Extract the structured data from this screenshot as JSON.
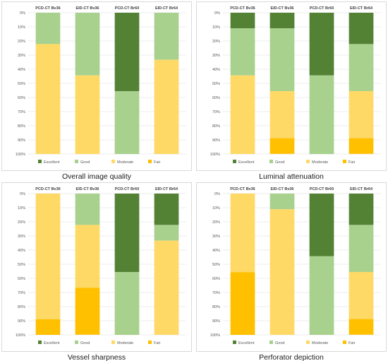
{
  "colors": {
    "Excellent": "#548235",
    "Good": "#a9d18e",
    "Moderate": "#ffd966",
    "Fair": "#ffc000"
  },
  "chart_data": [
    {
      "type": "bar",
      "stacked": "percent",
      "orientation": "vertical",
      "y_axis_inverted": true,
      "title": "Overall image quality",
      "categories": [
        "PCD-CT Bv36",
        "EID-CT Bv36",
        "PCD-CT Br60",
        "EID-CT Br64"
      ],
      "ylim": [
        0,
        100
      ],
      "yticks": [
        "0%",
        "10%",
        "20%",
        "30%",
        "40%",
        "50%",
        "60%",
        "70%",
        "80%",
        "90%",
        "100%"
      ],
      "legend_position": "bottom",
      "series": [
        {
          "name": "Excellent",
          "values": [
            0,
            0,
            55.6,
            0
          ]
        },
        {
          "name": "Good",
          "values": [
            22.2,
            44.4,
            44.4,
            33.3
          ]
        },
        {
          "name": "Moderate",
          "values": [
            77.8,
            55.6,
            0,
            66.7
          ]
        },
        {
          "name": "Fair",
          "values": [
            0,
            0,
            0,
            0
          ]
        }
      ]
    },
    {
      "type": "bar",
      "stacked": "percent",
      "orientation": "vertical",
      "y_axis_inverted": true,
      "title": "Luminal attenuation",
      "categories": [
        "PCD-CT Bv36",
        "EID-CT Bv36",
        "PCD-CT Br60",
        "EID-CT Br64"
      ],
      "ylim": [
        0,
        100
      ],
      "yticks": [
        "0%",
        "10%",
        "20%",
        "30%",
        "40%",
        "50%",
        "60%",
        "70%",
        "80%",
        "90%",
        "100%"
      ],
      "legend_position": "bottom",
      "series": [
        {
          "name": "Excellent",
          "values": [
            11.1,
            11.1,
            44.4,
            22.2
          ]
        },
        {
          "name": "Good",
          "values": [
            33.3,
            44.4,
            55.6,
            33.3
          ]
        },
        {
          "name": "Moderate",
          "values": [
            55.6,
            33.3,
            0,
            33.3
          ]
        },
        {
          "name": "Fair",
          "values": [
            0,
            11.1,
            0,
            11.1
          ]
        }
      ]
    },
    {
      "type": "bar",
      "stacked": "percent",
      "orientation": "vertical",
      "y_axis_inverted": true,
      "title": "Vessel sharpness",
      "categories": [
        "PCD-CT Bv36",
        "EID-CT Bv36",
        "PCD-CT Br60",
        "EID-CT Br64"
      ],
      "ylim": [
        0,
        100
      ],
      "yticks": [
        "0%",
        "10%",
        "20%",
        "30%",
        "40%",
        "50%",
        "60%",
        "70%",
        "80%",
        "90%",
        "100%"
      ],
      "legend_position": "bottom",
      "series": [
        {
          "name": "Excellent",
          "values": [
            0,
            0,
            55.6,
            22.2
          ]
        },
        {
          "name": "Good",
          "values": [
            0,
            22.2,
            44.4,
            11.1
          ]
        },
        {
          "name": "Moderate",
          "values": [
            88.9,
            44.4,
            0,
            66.7
          ]
        },
        {
          "name": "Fair",
          "values": [
            11.1,
            33.3,
            0,
            0
          ]
        }
      ]
    },
    {
      "type": "bar",
      "stacked": "percent",
      "orientation": "vertical",
      "y_axis_inverted": true,
      "title": "Perforator depiction",
      "categories": [
        "PCD-CT Bv36",
        "EID-CT Bv36",
        "PCD-CT Br60",
        "EID-CT Br64"
      ],
      "ylim": [
        0,
        100
      ],
      "yticks": [
        "0%",
        "10%",
        "20%",
        "30%",
        "40%",
        "50%",
        "60%",
        "70%",
        "80%",
        "90%",
        "100%"
      ],
      "legend_position": "bottom",
      "series": [
        {
          "name": "Excellent",
          "values": [
            0,
            0,
            44.4,
            22.2
          ]
        },
        {
          "name": "Good",
          "values": [
            0,
            11.1,
            55.6,
            33.3
          ]
        },
        {
          "name": "Moderate",
          "values": [
            55.6,
            88.9,
            0,
            33.3
          ]
        },
        {
          "name": "Fair",
          "values": [
            44.4,
            0,
            0,
            11.1
          ]
        }
      ]
    }
  ]
}
